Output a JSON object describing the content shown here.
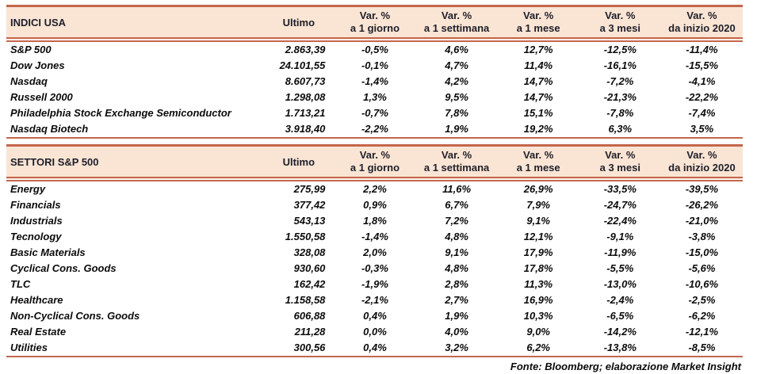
{
  "labels": {
    "ultimo": "Ultimo"
  },
  "columns": [
    {
      "line1": "Var. %",
      "line2": "a 1 giorno"
    },
    {
      "line1": "Var. %",
      "line2": "a 1 settimana"
    },
    {
      "line1": "Var. %",
      "line2": "a 1 mese"
    },
    {
      "line1": "Var. %",
      "line2": "a 3 mesi"
    },
    {
      "line1": "Var. %",
      "line2": "da inizio 2020"
    }
  ],
  "tables": [
    {
      "title": "INDICI USA",
      "rows": [
        [
          "S&P 500",
          "2.863,39",
          "-0,5%",
          "4,6%",
          "12,7%",
          "-12,5%",
          "-11,4%"
        ],
        [
          "Dow Jones",
          "24.101,55",
          "-0,1%",
          "4,7%",
          "11,4%",
          "-16,1%",
          "-15,5%"
        ],
        [
          "Nasdaq",
          "8.607,73",
          "-1,4%",
          "4,2%",
          "14,7%",
          "-7,2%",
          "-4,1%"
        ],
        [
          "Russell 2000",
          "1.298,08",
          "1,3%",
          "9,5%",
          "14,7%",
          "-21,3%",
          "-22,2%"
        ],
        [
          "Philadelphia Stock Exchange Semiconductor",
          "1.713,21",
          "-0,7%",
          "7,8%",
          "15,1%",
          "-7,8%",
          "-7,4%"
        ],
        [
          "Nasdaq Biotech",
          "3.918,40",
          "-2,2%",
          "1,9%",
          "19,2%",
          "6,3%",
          "3,5%"
        ]
      ]
    },
    {
      "title": "SETTORI S&P 500",
      "rows": [
        [
          "Energy",
          "275,99",
          "2,2%",
          "11,6%",
          "26,9%",
          "-33,5%",
          "-39,5%"
        ],
        [
          "Financials",
          "377,42",
          "0,9%",
          "6,7%",
          "7,9%",
          "-24,7%",
          "-26,2%"
        ],
        [
          "Industrials",
          "543,13",
          "1,8%",
          "7,2%",
          "9,1%",
          "-22,4%",
          "-21,0%"
        ],
        [
          "Tecnology",
          "1.550,58",
          "-1,4%",
          "4,8%",
          "12,1%",
          "-9,1%",
          "-3,8%"
        ],
        [
          "Basic Materials",
          "328,08",
          "2,0%",
          "9,1%",
          "17,9%",
          "-11,9%",
          "-15,0%"
        ],
        [
          "Cyclical Cons. Goods",
          "930,60",
          "-0,3%",
          "4,8%",
          "17,8%",
          "-5,5%",
          "-5,6%"
        ],
        [
          "TLC",
          "162,42",
          "-1,9%",
          "2,8%",
          "11,3%",
          "-13,0%",
          "-10,6%"
        ],
        [
          "Healthcare",
          "1.158,58",
          "-2,1%",
          "2,7%",
          "16,9%",
          "-2,4%",
          "-2,5%"
        ],
        [
          "Non-Cyclical Cons. Goods",
          "606,88",
          "0,4%",
          "1,9%",
          "10,3%",
          "-6,5%",
          "-6,2%"
        ],
        [
          "Real Estate",
          "211,28",
          "0,0%",
          "4,0%",
          "9,0%",
          "-14,2%",
          "-12,1%"
        ],
        [
          "Utilities",
          "300,56",
          "0,4%",
          "3,2%",
          "6,2%",
          "-13,8%",
          "-8,5%"
        ]
      ]
    }
  ],
  "footer": {
    "source": "Fonte: Bloomberg; elaborazione Market Insight"
  },
  "colors": {
    "header_band_bg": "#FAE5D5",
    "border_terracotta": "#C4664D",
    "header_text": "#1E1E28",
    "body_text": "#0B0B0B"
  },
  "chart_data": [
    {
      "type": "table",
      "title": "INDICI USA",
      "columns": [
        "Ultimo",
        "Var. % a 1 giorno",
        "Var. % a 1 settimana",
        "Var. % a 1 mese",
        "Var. % a 3 mesi",
        "Var. % da inizio 2020"
      ],
      "rows": {
        "S&P 500": [
          "2.863,39",
          "-0,5%",
          "4,6%",
          "12,7%",
          "-12,5%",
          "-11,4%"
        ],
        "Dow Jones": [
          "24.101,55",
          "-0,1%",
          "4,7%",
          "11,4%",
          "-16,1%",
          "-15,5%"
        ],
        "Nasdaq": [
          "8.607,73",
          "-1,4%",
          "4,2%",
          "14,7%",
          "-7,2%",
          "-4,1%"
        ],
        "Russell 2000": [
          "1.298,08",
          "1,3%",
          "9,5%",
          "14,7%",
          "-21,3%",
          "-22,2%"
        ],
        "Philadelphia Stock Exchange Semiconductor": [
          "1.713,21",
          "-0,7%",
          "7,8%",
          "15,1%",
          "-7,8%",
          "-7,4%"
        ],
        "Nasdaq Biotech": [
          "3.918,40",
          "-2,2%",
          "1,9%",
          "19,2%",
          "6,3%",
          "3,5%"
        ]
      }
    },
    {
      "type": "table",
      "title": "SETTORI S&P 500",
      "columns": [
        "Ultimo",
        "Var. % a 1 giorno",
        "Var. % a 1 settimana",
        "Var. % a 1 mese",
        "Var. % a 3 mesi",
        "Var. % da inizio 2020"
      ],
      "rows": {
        "Energy": [
          "275,99",
          "2,2%",
          "11,6%",
          "26,9%",
          "-33,5%",
          "-39,5%"
        ],
        "Financials": [
          "377,42",
          "0,9%",
          "6,7%",
          "7,9%",
          "-24,7%",
          "-26,2%"
        ],
        "Industrials": [
          "543,13",
          "1,8%",
          "7,2%",
          "9,1%",
          "-22,4%",
          "-21,0%"
        ],
        "Tecnology": [
          "1.550,58",
          "-1,4%",
          "4,8%",
          "12,1%",
          "-9,1%",
          "-3,8%"
        ],
        "Basic Materials": [
          "328,08",
          "2,0%",
          "9,1%",
          "17,9%",
          "-11,9%",
          "-15,0%"
        ],
        "Cyclical Cons. Goods": [
          "930,60",
          "-0,3%",
          "4,8%",
          "17,8%",
          "-5,5%",
          "-5,6%"
        ],
        "TLC": [
          "162,42",
          "-1,9%",
          "2,8%",
          "11,3%",
          "-13,0%",
          "-10,6%"
        ],
        "Healthcare": [
          "1.158,58",
          "-2,1%",
          "2,7%",
          "16,9%",
          "-2,4%",
          "-2,5%"
        ],
        "Non-Cyclical Cons. Goods": [
          "606,88",
          "0,4%",
          "1,9%",
          "10,3%",
          "-6,5%",
          "-6,2%"
        ],
        "Real Estate": [
          "211,28",
          "0,0%",
          "4,0%",
          "9,0%",
          "-14,2%",
          "-12,1%"
        ],
        "Utilities": [
          "300,56",
          "0,4%",
          "3,2%",
          "6,2%",
          "-13,8%",
          "-8,5%"
        ]
      }
    }
  ]
}
